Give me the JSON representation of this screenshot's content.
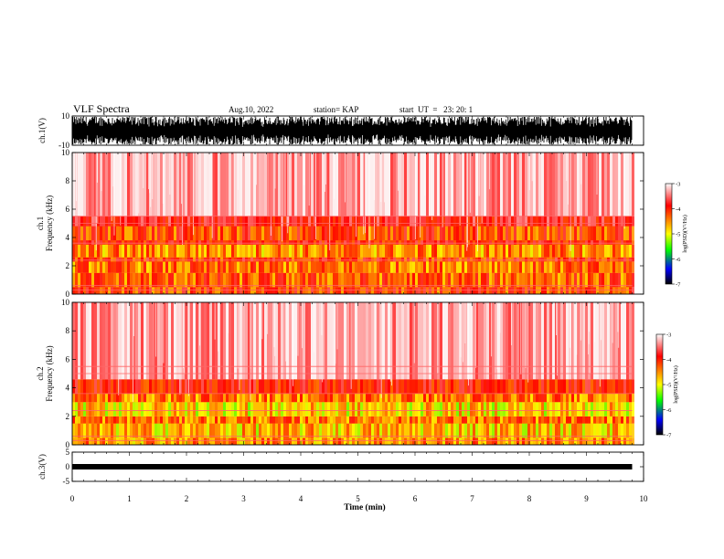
{
  "header": {
    "title": "VLF Spectra",
    "date": "Aug.10, 2022",
    "station": "station= KAP",
    "start": "start  UT  =   23: 20: 1"
  },
  "chart_data": [
    {
      "type": "line",
      "id": "ch1-waveform",
      "ylabel": "ch.1(V)",
      "ylim": [
        -10,
        10
      ],
      "yticks": [
        "10",
        "-10"
      ],
      "xlim": [
        0,
        10
      ],
      "data_extent_min": [
        0,
        9.8
      ]
    },
    {
      "type": "heatmap",
      "id": "ch1-spectrogram",
      "ylabel": "ch.1\nFrequency (kHz)",
      "ylim": [
        0,
        10
      ],
      "yticks": [
        "0",
        "2",
        "4",
        "6",
        "8",
        "10"
      ],
      "xlim": [
        0,
        10
      ],
      "data_extent_min": [
        0,
        9.8
      ],
      "colorbar": {
        "label": "log(PSD)(V²/Hz)",
        "range": [
          -7,
          -3
        ],
        "ticks": [
          "-3",
          "-4",
          "-5",
          "-6",
          "-7"
        ],
        "colormap": [
          "#fdfdfd",
          "#ff0000",
          "#ffff00",
          "#00ff00",
          "#0000ff",
          "#000000"
        ]
      },
      "bands_khz": [
        {
          "from": 0.0,
          "to": 0.5,
          "level": -4.2
        },
        {
          "from": 0.5,
          "to": 1.5,
          "level": -4.3
        },
        {
          "from": 1.5,
          "to": 2.3,
          "level": -4.4
        },
        {
          "from": 2.3,
          "to": 2.6,
          "level": -4.1
        },
        {
          "from": 2.6,
          "to": 3.5,
          "level": -4.5
        },
        {
          "from": 3.5,
          "to": 3.8,
          "level": -4.0
        },
        {
          "from": 3.8,
          "to": 4.8,
          "level": -4.2
        },
        {
          "from": 4.8,
          "to": 5.5,
          "level": -3.8
        },
        {
          "from": 5.5,
          "to": 10.0,
          "level": -3.3
        }
      ]
    },
    {
      "type": "heatmap",
      "id": "ch2-spectrogram",
      "ylabel": "ch.2\nFrequency (kHz)",
      "ylim": [
        0,
        10
      ],
      "yticks": [
        "0",
        "2",
        "4",
        "6",
        "8",
        "10"
      ],
      "xlim": [
        0,
        10
      ],
      "data_extent_min": [
        0,
        9.8
      ],
      "colorbar": {
        "label": "log(PSD)(V²/Hz)",
        "range": [
          -7,
          -3
        ],
        "ticks": [
          "-3",
          "-4",
          "-5",
          "-6",
          "-7"
        ],
        "colormap": [
          "#fdfdfd",
          "#ff0000",
          "#ffff00",
          "#00ff00",
          "#0000ff",
          "#000000"
        ]
      },
      "bands_khz": [
        {
          "from": 0.0,
          "to": 0.5,
          "level": -4.5
        },
        {
          "from": 0.5,
          "to": 1.5,
          "level": -4.7
        },
        {
          "from": 1.5,
          "to": 2.0,
          "level": -4.4
        },
        {
          "from": 2.0,
          "to": 3.0,
          "level": -4.8
        },
        {
          "from": 3.0,
          "to": 3.6,
          "level": -4.4
        },
        {
          "from": 3.6,
          "to": 4.6,
          "level": -4.0
        },
        {
          "from": 4.6,
          "to": 10.0,
          "level": -3.3
        }
      ]
    },
    {
      "type": "line",
      "id": "ch3-waveform",
      "ylabel": "ch.3(V)",
      "ylim": [
        -5,
        5
      ],
      "yticks": [
        "5",
        "0",
        "-5"
      ],
      "xlim": [
        0,
        10
      ],
      "data_extent_min": [
        0,
        9.8
      ],
      "level_v": 0
    }
  ],
  "xaxis": {
    "label": "Time (min)",
    "ticks": [
      "0",
      "1",
      "2",
      "3",
      "4",
      "5",
      "6",
      "7",
      "8",
      "9",
      "10"
    ]
  }
}
